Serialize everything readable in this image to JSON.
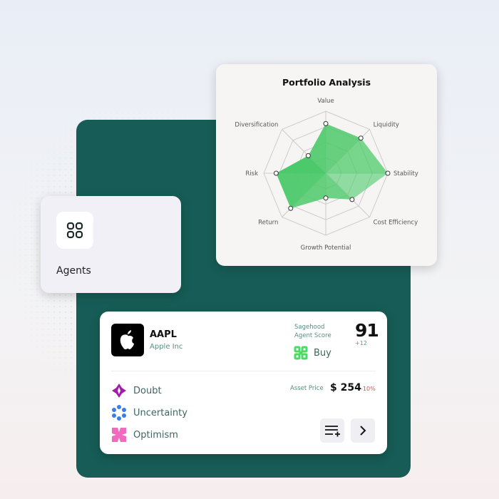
{
  "radar": {
    "title": "Portfolio Analysis"
  },
  "chart_data": {
    "type": "radar",
    "title": "Portfolio Analysis",
    "axes": [
      "Value",
      "Liquidity",
      "Stability",
      "Cost Efficiency",
      "Growth Potential",
      "Return",
      "Risk",
      "Diversification"
    ],
    "values": [
      80,
      80,
      100,
      60,
      40,
      80,
      80,
      40
    ],
    "range": [
      0,
      100
    ],
    "rings": 4,
    "colors": {
      "fill": "#4cc96a",
      "ring": "#cccccc"
    }
  },
  "agents": {
    "label": "Agents",
    "icon": "grid-icon"
  },
  "stock": {
    "ticker": "AAPL",
    "company": "Apple Inc",
    "score_label_1": "Sagehood",
    "score_label_2": "Agent Score",
    "score": "91",
    "score_change": "+12",
    "signal": "Buy",
    "asset_price_label": "Asset Price",
    "price": "$ 254",
    "price_change": "-10%",
    "moods": [
      {
        "label": "Doubt",
        "color": "#a01ea8"
      },
      {
        "label": "Uncertainty",
        "color": "#3b7de8"
      },
      {
        "label": "Optimism",
        "color": "#f06bc0"
      }
    ]
  },
  "colors": {
    "teal": "#175c56",
    "buy": "#4cd964",
    "down": "#d9534f",
    "up": "#3db85c"
  }
}
